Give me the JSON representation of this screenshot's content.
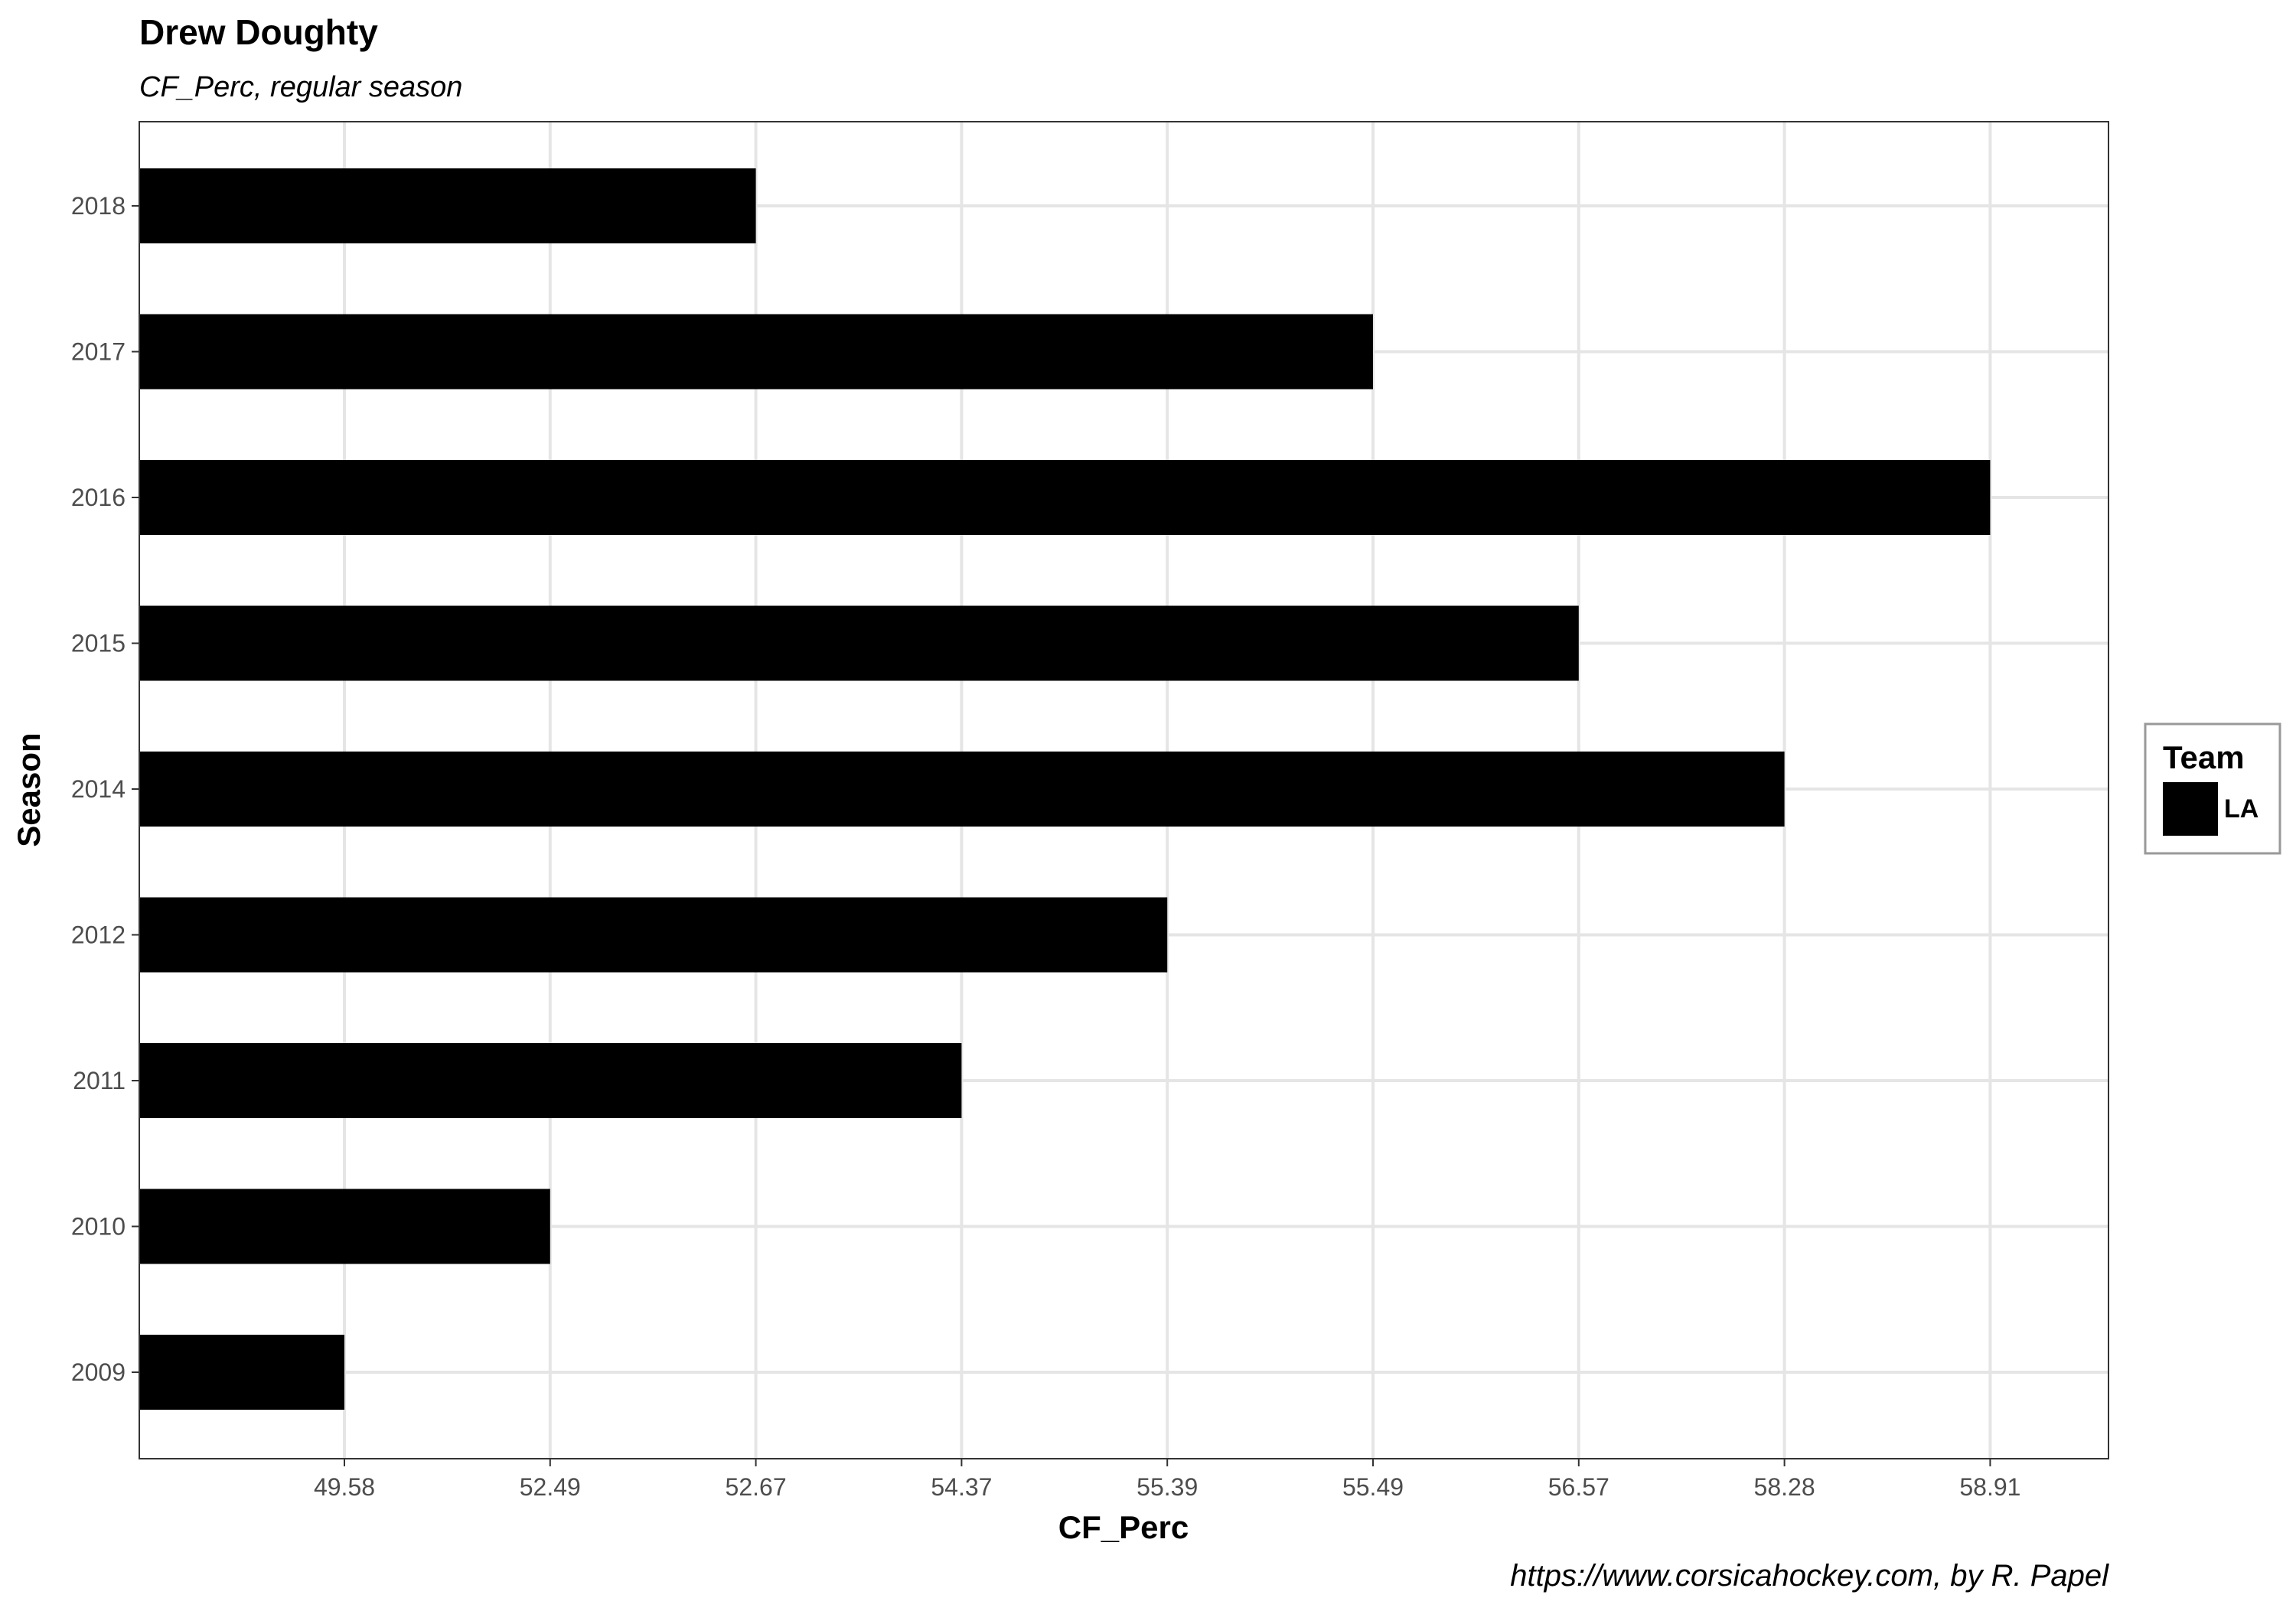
{
  "chart_data": {
    "type": "bar",
    "orientation": "horizontal",
    "title": "Drew Doughty",
    "subtitle": "CF_Perc, regular season",
    "xlabel": "CF_Perc",
    "ylabel": "Season",
    "caption": "https://www.corsicahockey.com, by R. Papel",
    "x_tick_labels": [
      "49.58",
      "52.49",
      "52.67",
      "54.37",
      "55.39",
      "55.49",
      "56.57",
      "58.28",
      "58.91"
    ],
    "categories": [
      "2009",
      "2010",
      "2011",
      "2012",
      "2014",
      "2015",
      "2016",
      "2017",
      "2018"
    ],
    "values": [
      49.58,
      52.49,
      54.37,
      55.39,
      58.28,
      56.57,
      58.91,
      55.49,
      52.67
    ],
    "x_axis_scale": "ordinal (ticks placed at evenly spaced rank positions of the distinct values)",
    "legend": {
      "title": "Team",
      "items": [
        {
          "label": "LA",
          "color": "#000000"
        }
      ],
      "position": "right"
    },
    "grid": true,
    "bar_color": "#000000",
    "grid_color": "#e5e5e5",
    "panel_border_color": "#333333"
  }
}
